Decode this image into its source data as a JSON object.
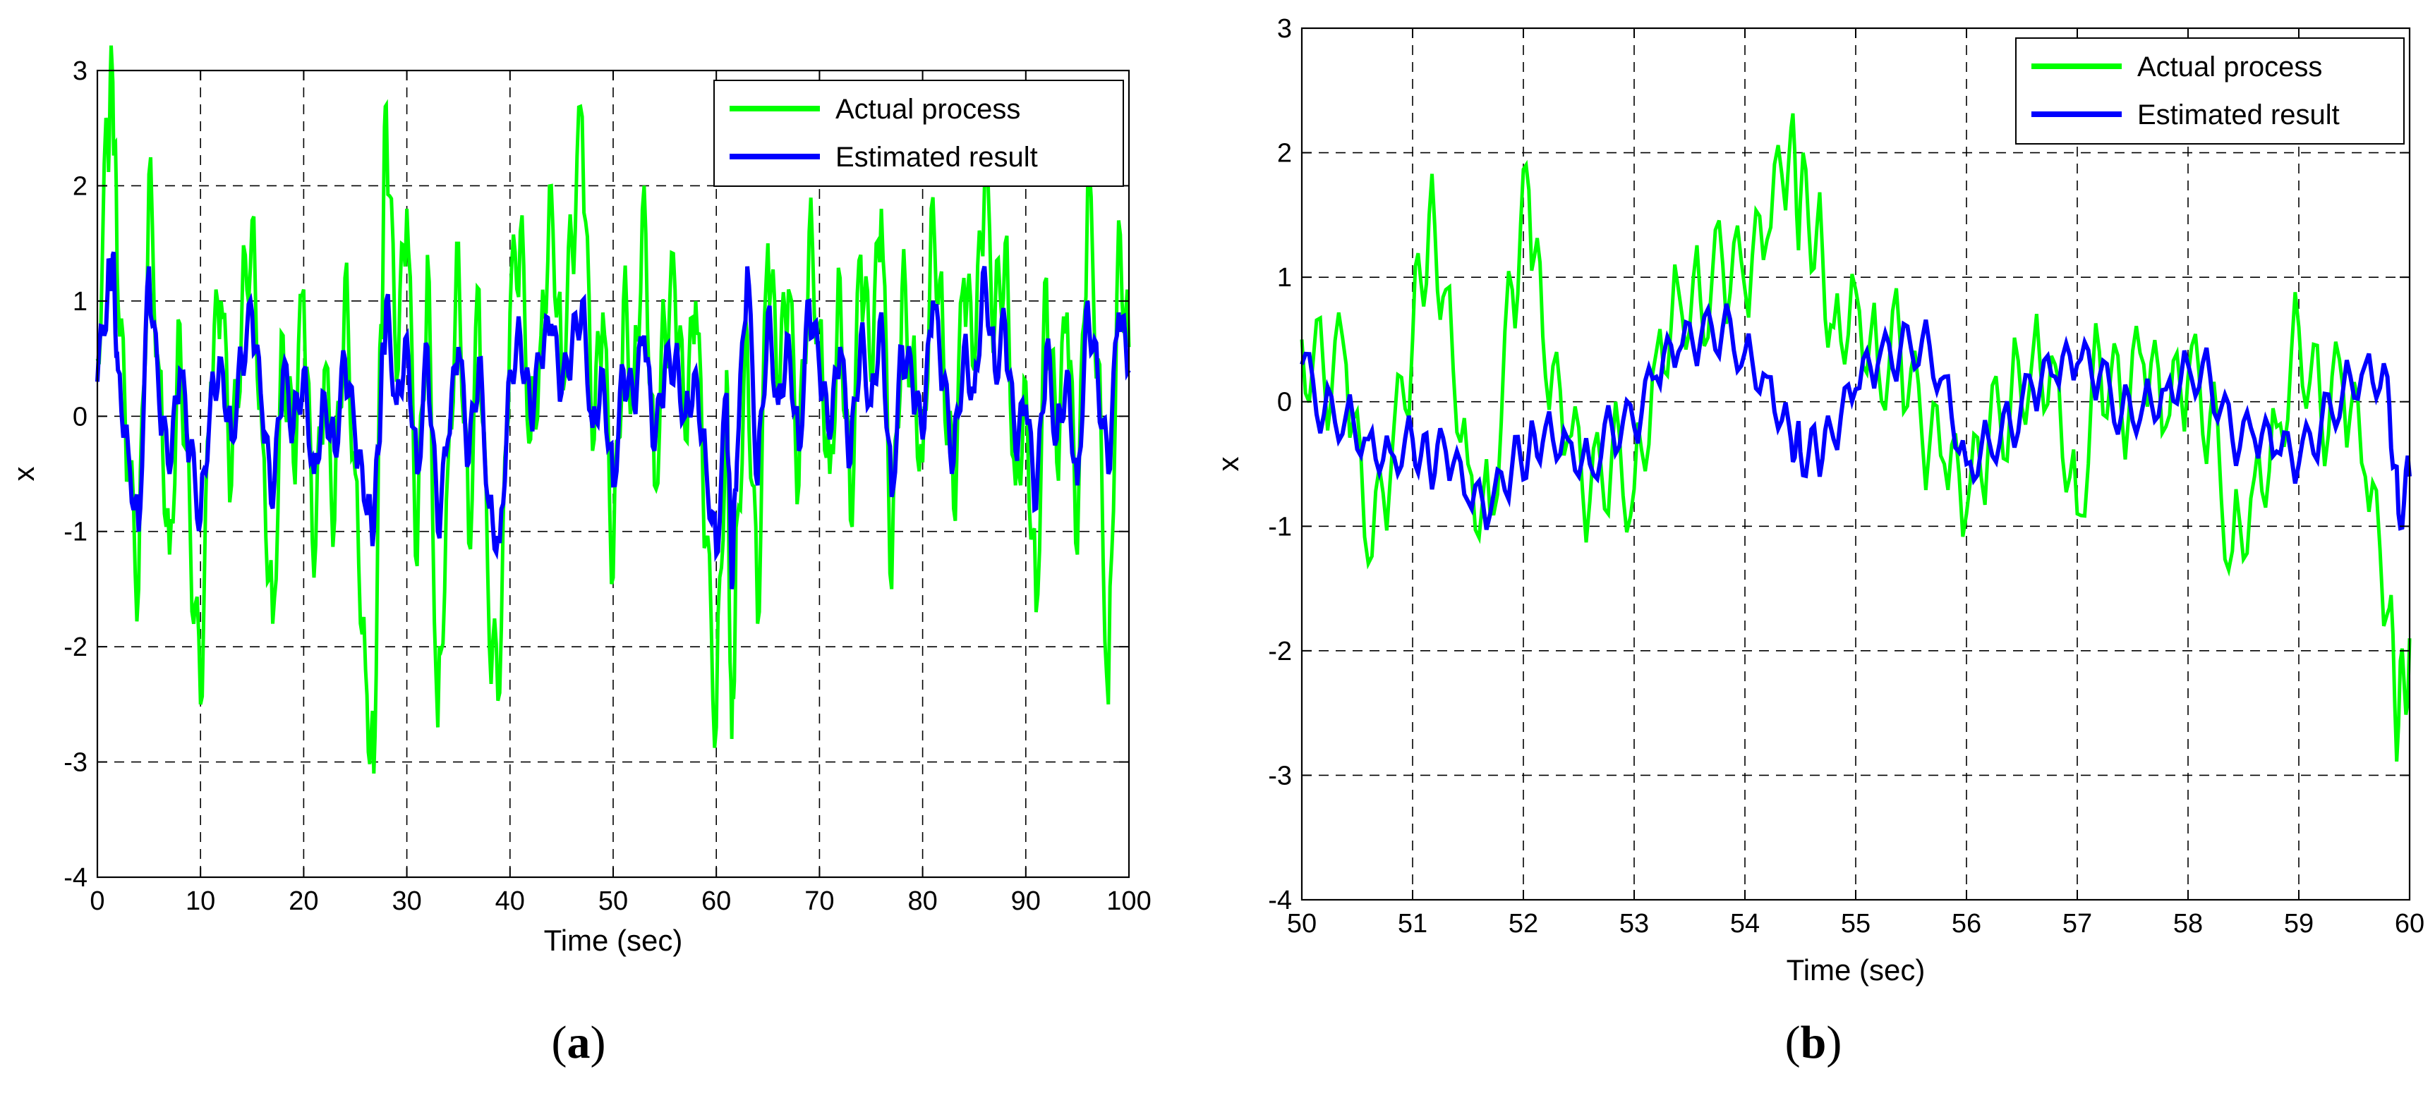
{
  "chart_data": [
    {
      "type": "line",
      "panel_label": "(a)",
      "panel_letter": "a",
      "xlabel": "Time (sec)",
      "ylabel": "x",
      "xlim": [
        0,
        100
      ],
      "ylim": [
        -4,
        3
      ],
      "xticks": [
        0,
        10,
        20,
        30,
        40,
        50,
        60,
        70,
        80,
        90,
        100
      ],
      "yticks": [
        -4,
        -3,
        -2,
        -1,
        0,
        1,
        2,
        3
      ],
      "grid": true,
      "legend_position": "top-right",
      "series": [
        {
          "name": "Actual process",
          "color": "#00ff00",
          "x": [
            0,
            1,
            1.5,
            2,
            3,
            4,
            5,
            6,
            7,
            8,
            9,
            10,
            11,
            12,
            13,
            14,
            15,
            16,
            17,
            18,
            19,
            20,
            21,
            22,
            23,
            24,
            25,
            26,
            26.8,
            27.5,
            28,
            29,
            30,
            31,
            32,
            33,
            34,
            35,
            36,
            37,
            38,
            39,
            40,
            41,
            42,
            43,
            44,
            45,
            46,
            47,
            48,
            49,
            50,
            51,
            52,
            53,
            54,
            55,
            56,
            57,
            58,
            59,
            60,
            61,
            61.5,
            62,
            63,
            64,
            65,
            66,
            67,
            68,
            69,
            70,
            71,
            72,
            73,
            74,
            75,
            76,
            77,
            78,
            79,
            80,
            81,
            82,
            83,
            84,
            85,
            86,
            87,
            88,
            89,
            90,
            91,
            92,
            93,
            94,
            95,
            96,
            97,
            98,
            99,
            100
          ],
          "values": [
            0.5,
            2.5,
            2.9,
            1.0,
            -0.5,
            -1.5,
            2.1,
            0.4,
            -1.2,
            0.8,
            -1.0,
            -2.5,
            0.3,
            1.0,
            -0.6,
            0.9,
            1.7,
            -0.2,
            -1.8,
            0.7,
            -0.4,
            1.1,
            -1.4,
            0.4,
            -0.9,
            1.2,
            -0.5,
            -2.2,
            -3.1,
            0.8,
            2.7,
            0.3,
            1.8,
            -1.3,
            1.4,
            -2.7,
            -0.4,
            1.5,
            -1.1,
            1.1,
            -2.0,
            -2.4,
            0.9,
            1.6,
            -0.2,
            0.7,
            2.0,
            0.4,
            1.5,
            2.6,
            -0.3,
            0.9,
            -1.4,
            1.0,
            0.2,
            2.0,
            -0.6,
            0.8,
            1.1,
            -0.2,
            1.0,
            -1.1,
            -2.7,
            0.4,
            -2.8,
            -0.9,
            0.7,
            -1.8,
            1.5,
            0.2,
            1.1,
            -0.6,
            1.6,
            0.8,
            -0.5,
            1.2,
            -0.9,
            1.4,
            0.3,
            1.8,
            -1.5,
            1.1,
            0.5,
            -0.4,
            1.9,
            0.6,
            -0.8,
            1.2,
            0.4,
            2.0,
            0.8,
            1.5,
            -0.6,
            0.3,
            -1.7,
            1.2,
            -0.4,
            0.9,
            -1.2,
            2.0,
            0.5,
            -2.5,
            1.7,
            0.6
          ]
        },
        {
          "name": "Estimated result",
          "color": "#0000ff",
          "x": [
            0,
            1,
            1.5,
            2,
            3,
            4,
            5,
            6,
            7,
            8,
            9,
            10,
            11,
            12,
            13,
            14,
            15,
            16,
            17,
            18,
            19,
            20,
            21,
            22,
            23,
            24,
            25,
            26,
            26.8,
            27.5,
            28,
            29,
            30,
            31,
            32,
            33,
            34,
            35,
            36,
            37,
            38,
            39,
            40,
            41,
            42,
            43,
            44,
            45,
            46,
            47,
            48,
            49,
            50,
            51,
            52,
            53,
            54,
            55,
            56,
            57,
            58,
            59,
            60,
            61,
            61.5,
            62,
            63,
            64,
            65,
            66,
            67,
            68,
            69,
            70,
            71,
            72,
            73,
            74,
            75,
            76,
            77,
            78,
            79,
            80,
            81,
            82,
            83,
            84,
            85,
            86,
            87,
            88,
            89,
            90,
            91,
            92,
            93,
            94,
            95,
            96,
            97,
            98,
            99,
            100
          ],
          "values": [
            0.3,
            1.1,
            1.4,
            0.4,
            -0.3,
            -1.0,
            1.3,
            0.1,
            -0.5,
            0.4,
            -0.3,
            -0.9,
            0.2,
            0.5,
            -0.2,
            0.5,
            0.9,
            0.0,
            -0.8,
            0.4,
            -0.1,
            0.4,
            -0.5,
            0.2,
            -0.3,
            0.5,
            -0.2,
            -0.8,
            -1.0,
            0.2,
            1.0,
            0.1,
            0.7,
            -0.5,
            0.6,
            -1.0,
            -0.2,
            0.6,
            -0.4,
            0.5,
            -0.8,
            -1.1,
            0.4,
            0.7,
            0.0,
            0.5,
            0.8,
            0.2,
            0.6,
            1.0,
            -0.1,
            0.4,
            -0.6,
            0.4,
            0.1,
            0.7,
            -0.3,
            0.4,
            0.5,
            0.0,
            0.4,
            -0.4,
            -1.2,
            0.2,
            -1.5,
            -0.4,
            1.3,
            -0.6,
            0.9,
            0.1,
            0.7,
            -0.3,
            1.0,
            0.4,
            -0.2,
            0.6,
            -0.4,
            0.7,
            0.1,
            0.9,
            -0.7,
            0.6,
            0.3,
            -0.2,
            1.0,
            0.3,
            -0.4,
            0.6,
            0.2,
            1.3,
            0.4,
            0.8,
            -0.3,
            0.1,
            -0.8,
            0.6,
            -0.2,
            0.4,
            -0.6,
            1.0,
            0.3,
            -0.5,
            0.9,
            0.4
          ]
        }
      ]
    },
    {
      "type": "line",
      "panel_label": "(b)",
      "panel_letter": "b",
      "xlabel": "Time (sec)",
      "ylabel": "x",
      "xlim": [
        50,
        60
      ],
      "ylim": [
        -4,
        3
      ],
      "xticks": [
        50,
        51,
        52,
        53,
        54,
        55,
        56,
        57,
        58,
        59,
        60
      ],
      "yticks": [
        -4,
        -3,
        -2,
        -1,
        0,
        1,
        2,
        3
      ],
      "grid": true,
      "legend_position": "top-right",
      "series": [
        {
          "name": "Actual process",
          "color": "#00ff00",
          "x": [
            50,
            50.2,
            50.4,
            50.6,
            50.8,
            51.0,
            51.15,
            51.3,
            51.5,
            51.7,
            51.9,
            52.05,
            52.2,
            52.4,
            52.6,
            52.8,
            53.0,
            53.2,
            53.4,
            53.6,
            53.8,
            54.0,
            54.2,
            54.4,
            54.5,
            54.65,
            54.8,
            55.0,
            55.2,
            55.4,
            55.6,
            55.8,
            56.0,
            56.2,
            56.4,
            56.6,
            56.8,
            57.0,
            57.2,
            57.4,
            57.6,
            57.8,
            58.0,
            58.2,
            58.4,
            58.6,
            58.8,
            59.0,
            59.2,
            59.4,
            59.6,
            59.8,
            59.9,
            60.0
          ],
          "values": [
            0.5,
            0.2,
            0.3,
            -1.3,
            -0.6,
            0.5,
            1.5,
            0.9,
            -0.5,
            -0.9,
            0.9,
            1.7,
            0.2,
            -0.3,
            -0.8,
            -0.4,
            -0.7,
            0.4,
            0.9,
            0.8,
            1.1,
            0.9,
            1.3,
            2.0,
            1.6,
            1.4,
            0.6,
            0.9,
            0.3,
            0.5,
            -0.3,
            -0.5,
            -0.9,
            -0.3,
            0.0,
            0.4,
            0.3,
            -0.9,
            0.4,
            -0.1,
            0.3,
            -0.2,
            0.2,
            -0.1,
            -1.2,
            -0.6,
            -0.2,
            0.6,
            -0.1,
            0.1,
            -0.6,
            -1.7,
            -2.6,
            -1.9
          ]
        },
        {
          "name": "Estimated result",
          "color": "#0000ff",
          "x": [
            50,
            50.2,
            50.4,
            50.6,
            50.8,
            51.0,
            51.15,
            51.3,
            51.5,
            51.7,
            51.9,
            52.05,
            52.2,
            52.4,
            52.6,
            52.8,
            53.0,
            53.2,
            53.4,
            53.6,
            53.8,
            54.0,
            54.2,
            54.4,
            54.5,
            54.65,
            54.8,
            55.0,
            55.2,
            55.4,
            55.6,
            55.8,
            56.0,
            56.2,
            56.4,
            56.6,
            56.8,
            57.0,
            57.2,
            57.4,
            57.6,
            57.8,
            58.0,
            58.2,
            58.4,
            58.6,
            58.8,
            59.0,
            59.2,
            59.4,
            59.6,
            59.8,
            59.9,
            60.0
          ],
          "values": [
            0.3,
            -0.1,
            -0.1,
            -0.3,
            -0.4,
            -0.3,
            -0.5,
            -0.4,
            -0.8,
            -0.9,
            -0.5,
            -0.4,
            -0.2,
            -0.3,
            -0.5,
            -0.2,
            -0.2,
            0.2,
            0.4,
            0.5,
            0.6,
            0.4,
            0.2,
            -0.2,
            -0.4,
            -0.4,
            -0.3,
            0.1,
            0.3,
            0.4,
            0.5,
            0.2,
            -0.5,
            -0.3,
            -0.2,
            0.1,
            0.2,
            0.3,
            0.2,
            -0.1,
            0.0,
            0.1,
            0.3,
            0.2,
            -0.3,
            -0.3,
            -0.4,
            -0.5,
            -0.2,
            0.1,
            0.3,
            0.2,
            -0.9,
            -0.6
          ]
        }
      ]
    }
  ]
}
